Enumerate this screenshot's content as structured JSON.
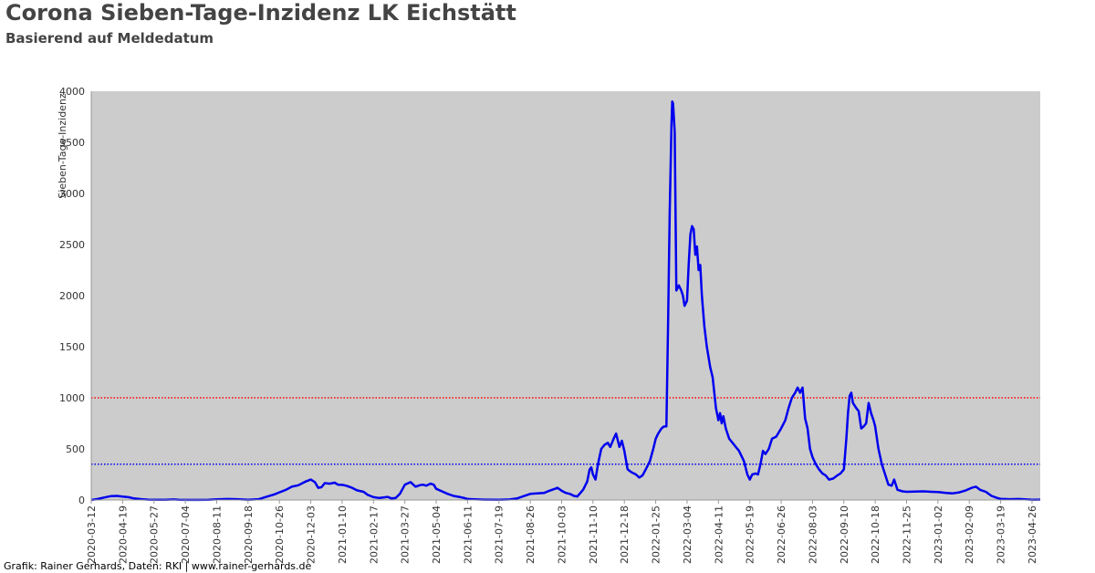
{
  "header": {
    "title": "Corona Sieben-Tage-Inzidenz LK Eichstätt",
    "subtitle": "Basierend auf Meldedatum"
  },
  "footer": {
    "credit": "Grafik: Rainer Gerhards, Daten: RKI | www.rainer-gerhards.de"
  },
  "chart_data": {
    "type": "line",
    "title": "Corona Sieben-Tage-Inzidenz LK Eichstätt",
    "subtitle": "Basierend auf Meldedatum",
    "xlabel": "",
    "ylabel": "Sieben-Tage-Inzidenz",
    "xlim": [
      "2020-03-12",
      "2023-05-06"
    ],
    "ylim": [
      0,
      4000
    ],
    "yticks": [
      0,
      500,
      1000,
      1500,
      2000,
      2500,
      3000,
      3500,
      4000
    ],
    "xticks": [
      "2020-03-12",
      "2020-04-19",
      "2020-05-27",
      "2020-07-04",
      "2020-08-11",
      "2020-09-18",
      "2020-10-26",
      "2020-12-03",
      "2021-01-10",
      "2021-02-17",
      "2021-03-27",
      "2021-05-04",
      "2021-06-11",
      "2021-07-19",
      "2021-08-26",
      "2021-10-03",
      "2021-11-10",
      "2021-12-18",
      "2022-01-25",
      "2022-03-04",
      "2022-04-11",
      "2022-05-19",
      "2022-06-26",
      "2022-08-03",
      "2022-09-10",
      "2022-10-18",
      "2022-11-25",
      "2023-01-02",
      "2023-02-09",
      "2023-03-19",
      "2023-04-26"
    ],
    "grid": false,
    "plot_background": "#cccccc",
    "line_color": "#0000ee",
    "reference_lines": [
      {
        "y": 1000,
        "color": "#ff0000",
        "style": "dotted"
      },
      {
        "y": 350,
        "color": "#0000ee",
        "style": "dotted"
      }
    ],
    "series": [
      {
        "points": [
          [
            "2020-03-12",
            0
          ],
          [
            "2020-03-20",
            10
          ],
          [
            "2020-03-28",
            25
          ],
          [
            "2020-04-05",
            38
          ],
          [
            "2020-04-12",
            40
          ],
          [
            "2020-04-19",
            33
          ],
          [
            "2020-04-26",
            28
          ],
          [
            "2020-05-03",
            15
          ],
          [
            "2020-05-12",
            8
          ],
          [
            "2020-05-20",
            4
          ],
          [
            "2020-05-27",
            2
          ],
          [
            "2020-06-10",
            2
          ],
          [
            "2020-06-20",
            5
          ],
          [
            "2020-06-26",
            2
          ],
          [
            "2020-07-04",
            1
          ],
          [
            "2020-07-20",
            1
          ],
          [
            "2020-08-01",
            2
          ],
          [
            "2020-08-11",
            6
          ],
          [
            "2020-08-25",
            10
          ],
          [
            "2020-09-05",
            8
          ],
          [
            "2020-09-18",
            3
          ],
          [
            "2020-10-01",
            8
          ],
          [
            "2020-10-10",
            30
          ],
          [
            "2020-10-20",
            55
          ],
          [
            "2020-10-26",
            75
          ],
          [
            "2020-11-03",
            100
          ],
          [
            "2020-11-10",
            130
          ],
          [
            "2020-11-18",
            145
          ],
          [
            "2020-11-26",
            178
          ],
          [
            "2020-12-03",
            200
          ],
          [
            "2020-12-08",
            175
          ],
          [
            "2020-12-12",
            120
          ],
          [
            "2020-12-16",
            125
          ],
          [
            "2020-12-20",
            165
          ],
          [
            "2020-12-26",
            160
          ],
          [
            "2021-01-01",
            170
          ],
          [
            "2021-01-05",
            150
          ],
          [
            "2021-01-10",
            148
          ],
          [
            "2021-01-15",
            140
          ],
          [
            "2021-01-22",
            120
          ],
          [
            "2021-01-28",
            95
          ],
          [
            "2021-02-05",
            80
          ],
          [
            "2021-02-10",
            50
          ],
          [
            "2021-02-17",
            28
          ],
          [
            "2021-02-24",
            20
          ],
          [
            "2021-03-01",
            25
          ],
          [
            "2021-03-06",
            30
          ],
          [
            "2021-03-11",
            15
          ],
          [
            "2021-03-16",
            20
          ],
          [
            "2021-03-21",
            60
          ],
          [
            "2021-03-27",
            150
          ],
          [
            "2021-04-03",
            175
          ],
          [
            "2021-04-09",
            130
          ],
          [
            "2021-04-14",
            145
          ],
          [
            "2021-04-18",
            150
          ],
          [
            "2021-04-22",
            140
          ],
          [
            "2021-04-27",
            160
          ],
          [
            "2021-05-01",
            150
          ],
          [
            "2021-05-04",
            110
          ],
          [
            "2021-05-11",
            85
          ],
          [
            "2021-05-18",
            60
          ],
          [
            "2021-05-25",
            40
          ],
          [
            "2021-06-01",
            30
          ],
          [
            "2021-06-07",
            20
          ],
          [
            "2021-06-11",
            10
          ],
          [
            "2021-06-20",
            6
          ],
          [
            "2021-07-01",
            4
          ],
          [
            "2021-07-19",
            2
          ],
          [
            "2021-08-01",
            5
          ],
          [
            "2021-08-10",
            15
          ],
          [
            "2021-08-17",
            35
          ],
          [
            "2021-08-26",
            60
          ],
          [
            "2021-09-03",
            65
          ],
          [
            "2021-09-12",
            70
          ],
          [
            "2021-09-18",
            90
          ],
          [
            "2021-09-25",
            110
          ],
          [
            "2021-09-28",
            120
          ],
          [
            "2021-10-03",
            90
          ],
          [
            "2021-10-08",
            70
          ],
          [
            "2021-10-13",
            60
          ],
          [
            "2021-10-18",
            40
          ],
          [
            "2021-10-22",
            35
          ],
          [
            "2021-10-29",
            100
          ],
          [
            "2021-11-03",
            180
          ],
          [
            "2021-11-06",
            300
          ],
          [
            "2021-11-08",
            320
          ],
          [
            "2021-11-10",
            250
          ],
          [
            "2021-11-13",
            200
          ],
          [
            "2021-11-16",
            350
          ],
          [
            "2021-11-20",
            500
          ],
          [
            "2021-11-24",
            540
          ],
          [
            "2021-11-28",
            560
          ],
          [
            "2021-12-01",
            520
          ],
          [
            "2021-12-05",
            600
          ],
          [
            "2021-12-08",
            650
          ],
          [
            "2021-12-12",
            520
          ],
          [
            "2021-12-15",
            580
          ],
          [
            "2021-12-18",
            480
          ],
          [
            "2021-12-22",
            300
          ],
          [
            "2021-12-26",
            275
          ],
          [
            "2022-01-01",
            250
          ],
          [
            "2022-01-05",
            220
          ],
          [
            "2022-01-09",
            240
          ],
          [
            "2022-01-13",
            300
          ],
          [
            "2022-01-18",
            380
          ],
          [
            "2022-01-22",
            500
          ],
          [
            "2022-01-25",
            600
          ],
          [
            "2022-01-28",
            650
          ],
          [
            "2022-02-01",
            700
          ],
          [
            "2022-02-04",
            720
          ],
          [
            "2022-02-07",
            720
          ],
          [
            "2022-02-09",
            1700
          ],
          [
            "2022-02-11",
            2800
          ],
          [
            "2022-02-13",
            3650
          ],
          [
            "2022-02-14",
            3900
          ],
          [
            "2022-02-15",
            3880
          ],
          [
            "2022-02-17",
            3600
          ],
          [
            "2022-02-19",
            2050
          ],
          [
            "2022-02-22",
            2100
          ],
          [
            "2022-02-25",
            2050
          ],
          [
            "2022-02-27",
            2000
          ],
          [
            "2022-03-01",
            1900
          ],
          [
            "2022-03-04",
            1950
          ],
          [
            "2022-03-06",
            2300
          ],
          [
            "2022-03-08",
            2600
          ],
          [
            "2022-03-10",
            2680
          ],
          [
            "2022-03-12",
            2650
          ],
          [
            "2022-03-14",
            2400
          ],
          [
            "2022-03-16",
            2480
          ],
          [
            "2022-03-18",
            2250
          ],
          [
            "2022-03-20",
            2300
          ],
          [
            "2022-03-22",
            2000
          ],
          [
            "2022-03-25",
            1700
          ],
          [
            "2022-03-28",
            1500
          ],
          [
            "2022-04-01",
            1300
          ],
          [
            "2022-04-04",
            1200
          ],
          [
            "2022-04-08",
            900
          ],
          [
            "2022-04-11",
            780
          ],
          [
            "2022-04-13",
            850
          ],
          [
            "2022-04-15",
            750
          ],
          [
            "2022-04-17",
            820
          ],
          [
            "2022-04-20",
            700
          ],
          [
            "2022-04-24",
            600
          ],
          [
            "2022-04-30",
            540
          ],
          [
            "2022-05-06",
            480
          ],
          [
            "2022-05-12",
            380
          ],
          [
            "2022-05-16",
            250
          ],
          [
            "2022-05-19",
            200
          ],
          [
            "2022-05-22",
            250
          ],
          [
            "2022-05-26",
            260
          ],
          [
            "2022-05-29",
            250
          ],
          [
            "2022-06-01",
            350
          ],
          [
            "2022-06-04",
            480
          ],
          [
            "2022-06-07",
            450
          ],
          [
            "2022-06-11",
            500
          ],
          [
            "2022-06-15",
            600
          ],
          [
            "2022-06-20",
            620
          ],
          [
            "2022-06-26",
            700
          ],
          [
            "2022-07-01",
            780
          ],
          [
            "2022-07-05",
            900
          ],
          [
            "2022-07-09",
            1000
          ],
          [
            "2022-07-13",
            1050
          ],
          [
            "2022-07-16",
            1100
          ],
          [
            "2022-07-19",
            1050
          ],
          [
            "2022-07-22",
            1100
          ],
          [
            "2022-07-25",
            800
          ],
          [
            "2022-07-28",
            700
          ],
          [
            "2022-07-31",
            500
          ],
          [
            "2022-08-03",
            420
          ],
          [
            "2022-08-07",
            350
          ],
          [
            "2022-08-11",
            300
          ],
          [
            "2022-08-15",
            260
          ],
          [
            "2022-08-19",
            240
          ],
          [
            "2022-08-23",
            200
          ],
          [
            "2022-08-28",
            210
          ],
          [
            "2022-09-02",
            240
          ],
          [
            "2022-09-06",
            260
          ],
          [
            "2022-09-10",
            300
          ],
          [
            "2022-09-13",
            600
          ],
          [
            "2022-09-15",
            850
          ],
          [
            "2022-09-17",
            1020
          ],
          [
            "2022-09-19",
            1050
          ],
          [
            "2022-09-21",
            950
          ],
          [
            "2022-09-25",
            900
          ],
          [
            "2022-09-28",
            870
          ],
          [
            "2022-10-01",
            700
          ],
          [
            "2022-10-04",
            720
          ],
          [
            "2022-10-07",
            750
          ],
          [
            "2022-10-10",
            950
          ],
          [
            "2022-10-13",
            850
          ],
          [
            "2022-10-16",
            780
          ],
          [
            "2022-10-18",
            720
          ],
          [
            "2022-10-22",
            500
          ],
          [
            "2022-10-26",
            350
          ],
          [
            "2022-10-30",
            250
          ],
          [
            "2022-11-03",
            150
          ],
          [
            "2022-11-07",
            140
          ],
          [
            "2022-11-10",
            200
          ],
          [
            "2022-11-14",
            100
          ],
          [
            "2022-11-20",
            85
          ],
          [
            "2022-11-25",
            80
          ],
          [
            "2022-12-05",
            82
          ],
          [
            "2022-12-15",
            85
          ],
          [
            "2022-12-25",
            80
          ],
          [
            "2023-01-02",
            78
          ],
          [
            "2023-01-12",
            70
          ],
          [
            "2023-01-20",
            65
          ],
          [
            "2023-01-28",
            75
          ],
          [
            "2023-02-05",
            95
          ],
          [
            "2023-02-12",
            120
          ],
          [
            "2023-02-17",
            130
          ],
          [
            "2023-02-22",
            100
          ],
          [
            "2023-03-01",
            80
          ],
          [
            "2023-03-08",
            40
          ],
          [
            "2023-03-15",
            20
          ],
          [
            "2023-03-19",
            12
          ],
          [
            "2023-03-30",
            8
          ],
          [
            "2023-04-10",
            10
          ],
          [
            "2023-04-20",
            5
          ],
          [
            "2023-04-26",
            3
          ],
          [
            "2023-05-06",
            4
          ]
        ]
      }
    ]
  }
}
